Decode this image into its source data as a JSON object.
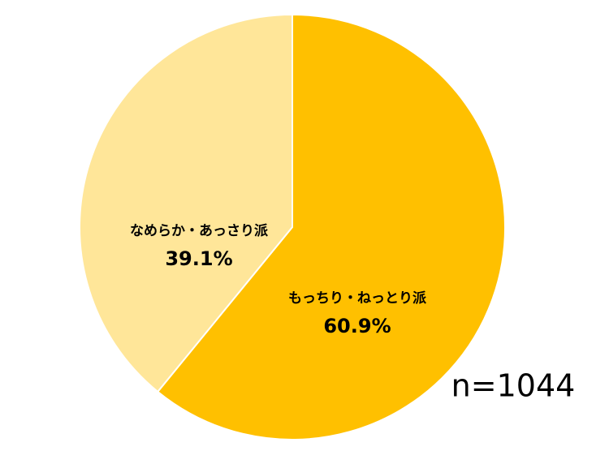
{
  "chart_data": {
    "type": "pie",
    "categories": [
      "もっちり・ねっとり派",
      "なめらか・あっさり派"
    ],
    "values": [
      60.9,
      39.1
    ],
    "value_labels": [
      "60.9%",
      "39.1%"
    ],
    "colors": [
      "#FFC000",
      "#FFE699"
    ],
    "annotation": "n=1044"
  }
}
